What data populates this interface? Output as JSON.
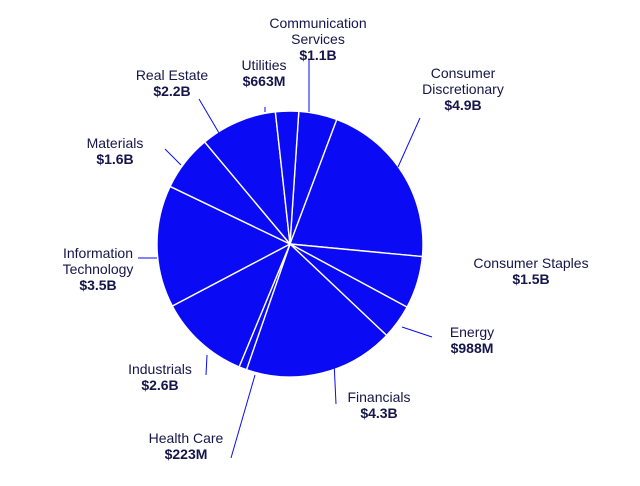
{
  "chart_data": {
    "type": "pie",
    "title": "",
    "colors": {
      "slice": "#0a0af5",
      "separator": "#ffffff",
      "leader": "#0a0af5",
      "text": "#15154a"
    },
    "slices": [
      {
        "name": [
          "Communication",
          "Services"
        ],
        "value_label": "$1.1B",
        "value": 1.1
      },
      {
        "name": [
          "Consumer",
          "Discretionary"
        ],
        "value_label": "$4.9B",
        "value": 4.9
      },
      {
        "name": [
          "Consumer Staples"
        ],
        "value_label": "$1.5B",
        "value": 1.5
      },
      {
        "name": [
          "Energy"
        ],
        "value_label": "$988M",
        "value": 0.988
      },
      {
        "name": [
          "Financials"
        ],
        "value_label": "$4.3B",
        "value": 4.3
      },
      {
        "name": [
          "Health Care"
        ],
        "value_label": "$223M",
        "value": 0.223
      },
      {
        "name": [
          "Industrials"
        ],
        "value_label": "$2.6B",
        "value": 2.6
      },
      {
        "name": [
          "Information",
          "Technology"
        ],
        "value_label": "$3.5B",
        "value": 3.5
      },
      {
        "name": [
          "Materials"
        ],
        "value_label": "$1.6B",
        "value": 1.6
      },
      {
        "name": [
          "Real Estate"
        ],
        "value_label": "$2.2B",
        "value": 2.2
      },
      {
        "name": [
          "Utilities"
        ],
        "value_label": "$663M",
        "value": 0.663
      }
    ]
  }
}
